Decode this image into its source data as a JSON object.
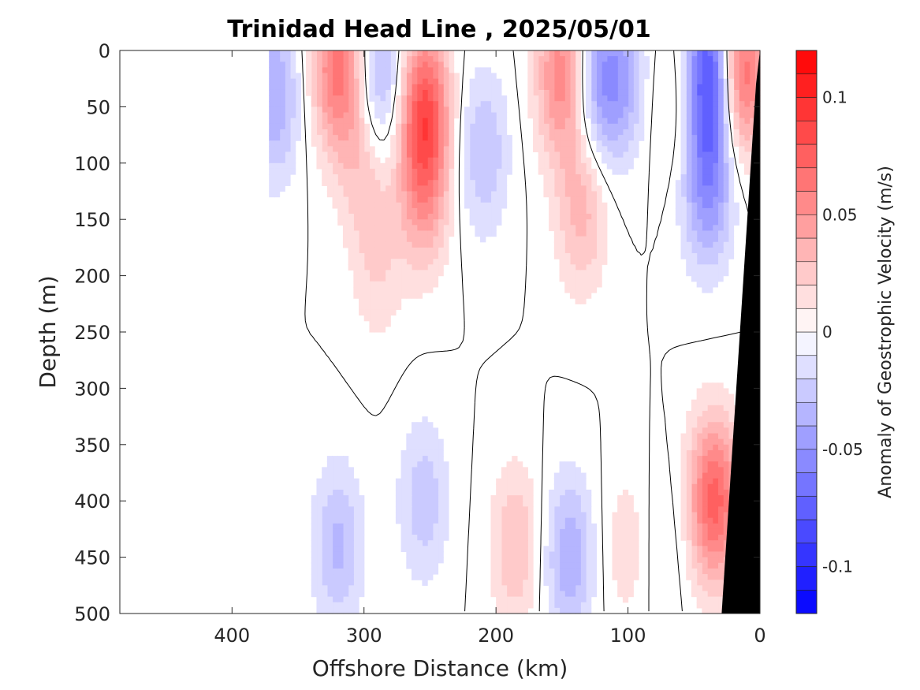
{
  "chart_data": {
    "type": "heatmap",
    "title": "Trinidad Head Line , 2025/05/01",
    "xlabel": "Offshore Distance (km)",
    "ylabel": "Depth (m)",
    "colorbar_label": "Anomaly of Geostrophic Velocity (m/s)",
    "xlim": [
      485,
      0
    ],
    "ylim": [
      500,
      0
    ],
    "x_reversed": true,
    "y_reversed": true,
    "x_ticks": [
      400,
      300,
      200,
      100,
      0
    ],
    "x_tick_labels": [
      "400",
      "300",
      "200",
      "100",
      "0"
    ],
    "y_ticks": [
      0,
      50,
      100,
      150,
      200,
      250,
      300,
      350,
      400,
      450,
      500
    ],
    "y_tick_labels": [
      "0",
      "50",
      "100",
      "150",
      "200",
      "250",
      "300",
      "350",
      "400",
      "450",
      "500"
    ],
    "colorbar": {
      "range": [
        -0.12,
        0.12
      ],
      "levels": 24,
      "ticks": [
        0.1,
        0.05,
        0,
        -0.05,
        -0.1
      ],
      "tick_labels": [
        "0.1",
        "0.05",
        "0",
        "-0.05",
        "-0.1"
      ],
      "colors": {
        "negative": "#0000ff",
        "zero": "#ffffff",
        "positive": "#ff0000"
      }
    },
    "zero_contour_color": "#000000",
    "bathymetry_color": "#000000",
    "data_extent_km": [
      0,
      370
    ],
    "cores": [
      {
        "x": 320,
        "z": 15,
        "v": 0.065
      },
      {
        "x": 300,
        "z": 95,
        "v": 0.028
      },
      {
        "x": 290,
        "z": 190,
        "v": 0.018
      },
      {
        "x": 288,
        "z": 30,
        "v": -0.045
      },
      {
        "x": 368,
        "z": 40,
        "v": -0.04
      },
      {
        "x": 255,
        "z": 50,
        "v": 0.075
      },
      {
        "x": 255,
        "z": 125,
        "v": 0.04
      },
      {
        "x": 210,
        "z": 90,
        "v": -0.03
      },
      {
        "x": 150,
        "z": 20,
        "v": 0.06
      },
      {
        "x": 135,
        "z": 140,
        "v": 0.035
      },
      {
        "x": 125,
        "z": 30,
        "v": -0.04
      },
      {
        "x": 105,
        "z": 25,
        "v": -0.035
      },
      {
        "x": 65,
        "z": 50,
        "v": 0.018
      },
      {
        "x": 35,
        "z": 20,
        "v": -0.11
      },
      {
        "x": 40,
        "z": 120,
        "v": -0.05
      },
      {
        "x": 18,
        "z": 20,
        "v": 0.1
      },
      {
        "x": 320,
        "z": 440,
        "v": -0.032
      },
      {
        "x": 255,
        "z": 400,
        "v": -0.026
      },
      {
        "x": 185,
        "z": 440,
        "v": 0.03
      },
      {
        "x": 145,
        "z": 450,
        "v": -0.038
      },
      {
        "x": 35,
        "z": 400,
        "v": 0.075
      },
      {
        "x": 100,
        "z": 440,
        "v": 0.018
      },
      {
        "x": 75,
        "z": 440,
        "v": -0.012
      }
    ]
  }
}
